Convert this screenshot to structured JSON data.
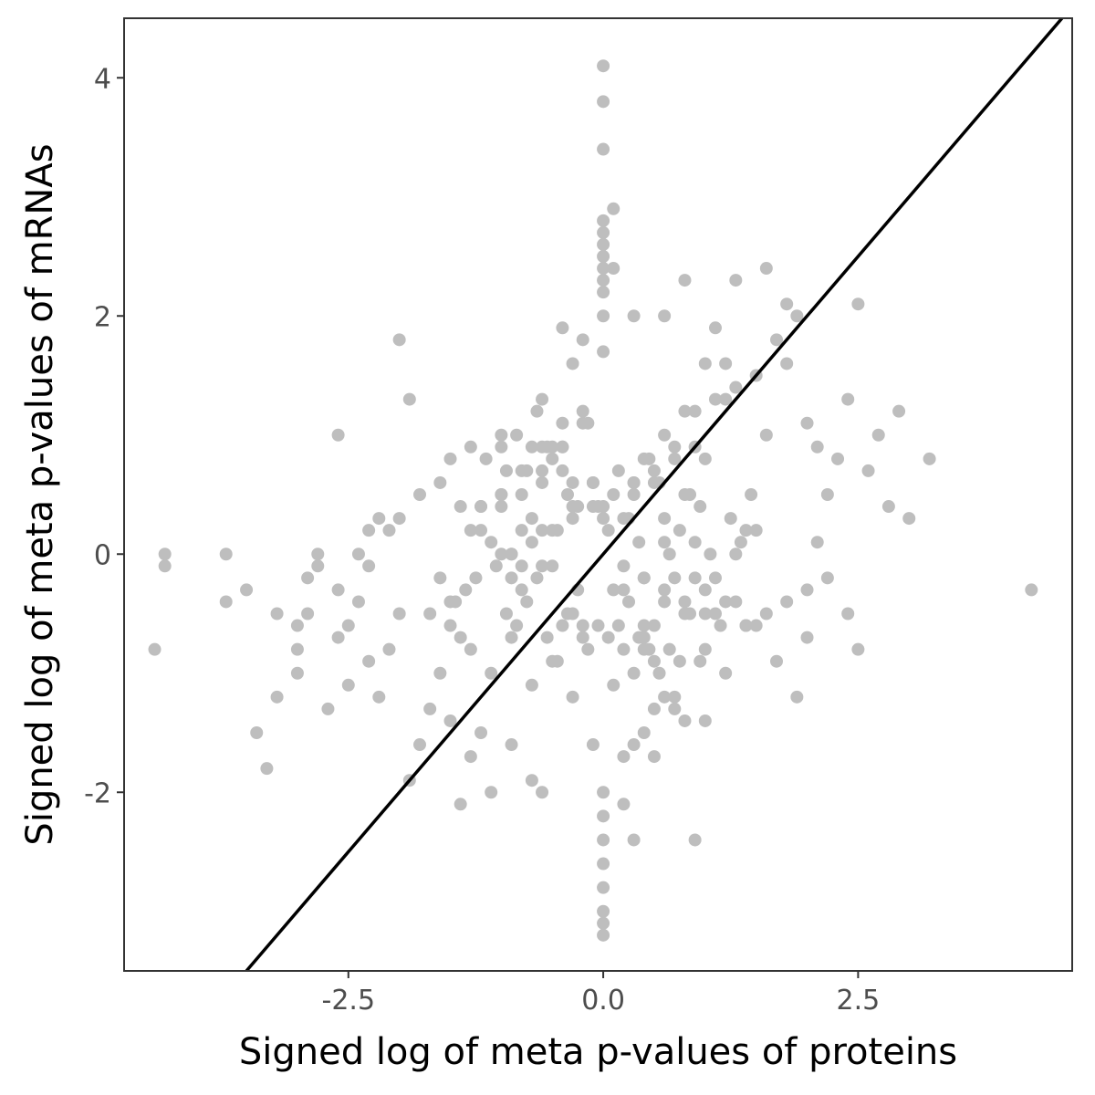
{
  "chart_data": {
    "type": "scatter",
    "title": "",
    "xlabel": "Signed log of meta p-values of proteins",
    "ylabel": "Signed log of meta p-values of mRNAs",
    "xlim": [
      -4.7,
      4.6
    ],
    "ylim": [
      -3.5,
      4.5
    ],
    "x_ticks": [
      -2.5,
      0.0,
      2.5
    ],
    "x_tick_labels": [
      "-2.5",
      "0.0",
      "2.5"
    ],
    "y_ticks": [
      -2,
      0,
      2,
      4
    ],
    "y_tick_labels": [
      "-2",
      "0",
      "2",
      "4"
    ],
    "grid": false,
    "legend": "none",
    "point_color": "#bebebe",
    "line_color": "#000000",
    "reference_line": {
      "type": "identity",
      "slope": 1,
      "intercept": 0
    },
    "points_x": [
      -4.4,
      -4.3,
      -4.3,
      -3.7,
      -3.7,
      -3.5,
      -3.4,
      -3.3,
      -3.2,
      -3.2,
      -3.0,
      -3.0,
      -3.0,
      -2.9,
      -2.9,
      -2.8,
      -2.8,
      -2.7,
      -2.6,
      -2.6,
      -2.5,
      -2.5,
      -2.4,
      -2.3,
      -2.2,
      -2.1,
      -2.0,
      -1.9,
      -1.8,
      -1.7,
      -1.6,
      -1.5,
      -1.4,
      -1.3,
      -1.2,
      -1.1,
      -0.9,
      -0.7,
      -2.4,
      -2.3,
      -2.2,
      -2.6,
      -1.0,
      -1.3,
      -1.5,
      -1.9,
      -2.0,
      -1.8,
      -1.6,
      -0.6,
      -0.4,
      -0.3,
      -0.2,
      -0.5,
      -0.6,
      0.0,
      0.0,
      0.0,
      0.0,
      0.0,
      0.0,
      0.0,
      0.0,
      0.0,
      0.0,
      0.0,
      0.0,
      0.0,
      0.0,
      0.0,
      0.0,
      0.0,
      0.0,
      0.0,
      0.0,
      0.1,
      0.1,
      0.3,
      0.6,
      0.8,
      1.1,
      1.3,
      1.6,
      1.8,
      1.8,
      1.9,
      2.0,
      2.1,
      2.2,
      2.3,
      2.4,
      2.5,
      2.6,
      2.7,
      2.8,
      2.9,
      3.0,
      3.2,
      4.2,
      2.4,
      2.5,
      1.9,
      2.0,
      1.7,
      1.5,
      1.3,
      1.1,
      1.0,
      0.9,
      0.7,
      0.5,
      0.4,
      0.3,
      0.2,
      0.2,
      0.4,
      0.6,
      0.8,
      1.0,
      1.2,
      1.4,
      1.6,
      1.8,
      2.0,
      2.2,
      2.1,
      1.4,
      0.5,
      0.3,
      1.2,
      1.6,
      -0.8,
      -1.0,
      -1.2,
      -1.4,
      -0.9,
      -0.7,
      -0.5,
      -0.3,
      -0.1,
      -1.1,
      -1.3,
      -1.5,
      -1.7,
      -0.8,
      -0.6,
      -0.4,
      -0.2,
      -1.0,
      -1.2,
      -2.1,
      -2.3,
      -2.0,
      -1.6,
      -1.4,
      0.5,
      0.7,
      0.9,
      1.1,
      1.3,
      1.5,
      1.7,
      1.0,
      0.8,
      0.6,
      0.4,
      1.2,
      1.4,
      0.9,
      0.7,
      0.5,
      0.3,
      0.1,
      -0.1,
      -0.3,
      -0.5,
      -0.7,
      -0.9,
      0.2,
      0.4,
      0.6,
      0.8,
      1.0,
      -0.2,
      -0.4,
      -0.6,
      -0.8,
      -1.0,
      0.0,
      0.3,
      -0.3,
      0.6,
      -0.6,
      0.9,
      -0.9,
      1.2,
      -1.2,
      0.1,
      -0.1,
      0.5,
      -0.5,
      0.8,
      -0.8,
      1.1,
      -1.1,
      0.2,
      -0.2,
      0.7,
      -0.7,
      1.3,
      -1.3,
      0.4,
      -0.4,
      1.0,
      -1.0,
      1.5,
      -1.5,
      0.35,
      -0.35,
      0.65,
      -0.65,
      0.15,
      -0.15,
      0.85,
      -0.85,
      0.45,
      -0.45,
      0.25,
      -0.25,
      0.55,
      -0.55,
      0.75,
      -0.75,
      0.95,
      -0.95,
      1.05,
      -1.05,
      1.25,
      -1.25,
      1.35,
      -1.35,
      1.45,
      -1.45,
      0.05,
      -0.05,
      0.6,
      -0.6,
      0.3,
      -0.3,
      0.9,
      -0.9,
      0.0,
      0.45,
      -0.45,
      0.75,
      -0.75,
      0.2,
      -0.2,
      1.15,
      -1.15,
      0.55,
      -0.55,
      0.35,
      -0.35,
      0.85,
      -0.85,
      0.1,
      -0.1,
      0.65,
      -0.65,
      0.25,
      -0.25,
      0.95,
      -0.95,
      0.4,
      -0.4,
      0.7,
      -0.7,
      0.15,
      -0.15,
      0.5,
      -0.5,
      1.0,
      -1.0,
      0.3,
      -0.3,
      0.8,
      -0.8,
      0.05,
      -0.05,
      0.6,
      -0.6,
      0.4,
      -0.4,
      0.2,
      -0.2
    ],
    "points_y": [
      -0.8,
      0.0,
      -0.1,
      0.0,
      -0.4,
      -0.3,
      -1.5,
      -1.8,
      -0.5,
      -1.2,
      -0.6,
      -0.8,
      -1.0,
      -0.2,
      -0.5,
      0.0,
      -0.1,
      -1.3,
      -0.3,
      -0.7,
      -1.1,
      -0.6,
      -0.4,
      -0.9,
      -1.2,
      -0.8,
      -0.5,
      -1.9,
      -1.6,
      -1.3,
      -1.0,
      -1.4,
      -2.1,
      -1.7,
      -1.5,
      -2.0,
      -1.6,
      -1.9,
      0.0,
      0.2,
      0.3,
      1.0,
      0.9,
      0.9,
      0.8,
      1.3,
      1.8,
      0.5,
      0.6,
      1.3,
      1.9,
      1.6,
      1.8,
      0.9,
      -2.0,
      4.1,
      3.8,
      3.4,
      2.8,
      2.7,
      2.6,
      2.5,
      2.4,
      2.3,
      2.2,
      2.0,
      1.7,
      -2.0,
      -2.2,
      -2.4,
      -2.6,
      -2.8,
      -3.0,
      -3.2,
      -3.1,
      2.9,
      2.4,
      2.0,
      2.0,
      2.3,
      1.9,
      2.3,
      2.4,
      2.1,
      1.6,
      2.0,
      1.1,
      0.9,
      0.5,
      0.8,
      1.3,
      2.1,
      0.7,
      1.0,
      0.4,
      1.2,
      0.3,
      0.8,
      -0.3,
      -0.5,
      -0.8,
      -1.2,
      -0.7,
      -0.9,
      -0.6,
      -0.4,
      -0.2,
      -1.4,
      -2.4,
      -1.3,
      -1.7,
      -1.5,
      -2.4,
      -2.1,
      -1.7,
      -0.7,
      -1.2,
      -1.4,
      -0.8,
      -1.0,
      -0.6,
      -0.5,
      -0.4,
      -0.3,
      -0.2,
      0.1,
      -0.6,
      -1.3,
      -1.6,
      1.6,
      1.0,
      -0.1,
      0.0,
      0.2,
      0.4,
      -0.7,
      -1.1,
      -0.9,
      -1.2,
      -1.6,
      -1.0,
      -0.8,
      -0.6,
      -0.5,
      0.7,
      0.9,
      1.1,
      1.2,
      0.5,
      0.4,
      0.2,
      -0.1,
      0.3,
      -0.2,
      -0.7,
      0.6,
      0.9,
      1.2,
      1.3,
      1.4,
      1.5,
      1.8,
      1.6,
      1.2,
      1.0,
      0.8,
      1.3,
      0.2,
      0.9,
      0.8,
      0.7,
      0.6,
      0.5,
      0.4,
      0.3,
      0.2,
      0.1,
      0.0,
      -0.1,
      -0.2,
      -0.3,
      -0.4,
      -0.5,
      -0.6,
      0.7,
      0.6,
      0.5,
      0.4,
      0.3,
      0.5,
      0.4,
      0.1,
      0.2,
      -0.2,
      0.0,
      -0.4,
      0.4,
      -0.3,
      0.6,
      -0.6,
      -0.1,
      0.5,
      -0.3,
      -0.5,
      0.1,
      0.3,
      -0.7,
      -0.2,
      0.9,
      0.0,
      0.2,
      -0.8,
      -0.6,
      0.8,
      1.0,
      0.2,
      -0.4,
      0.1,
      -0.5,
      0.0,
      -0.2,
      0.7,
      -0.8,
      0.5,
      -0.6,
      0.8,
      -0.9,
      0.3,
      -0.3,
      0.6,
      -0.7,
      0.2,
      -0.4,
      0.4,
      -0.5,
      0.0,
      -0.1,
      0.3,
      -0.2,
      0.1,
      -0.3,
      0.5,
      -0.4,
      0.2,
      -0.6,
      0.3,
      -0.1,
      0.6,
      -0.5,
      0.1,
      -0.2,
      0.4,
      -0.8,
      0.2,
      -0.9,
      0.7,
      -0.3,
      1.1,
      -0.6,
      0.8,
      -1.0,
      0.9,
      -0.7,
      0.5,
      -0.5,
      1.0,
      -1.1,
      0.6,
      -0.8,
      1.2,
      -0.4,
      0.4,
      -0.9,
      0.7,
      -0.2,
      0.9,
      -1.2,
      0.3,
      -0.6,
      1.1,
      -0.9,
      0.8,
      -0.3,
      0.5,
      -1.0,
      0.6,
      -0.5,
      0.2,
      -0.7,
      0.4,
      -0.4,
      0.7,
      -0.6,
      0.9,
      -0.8
    ]
  }
}
